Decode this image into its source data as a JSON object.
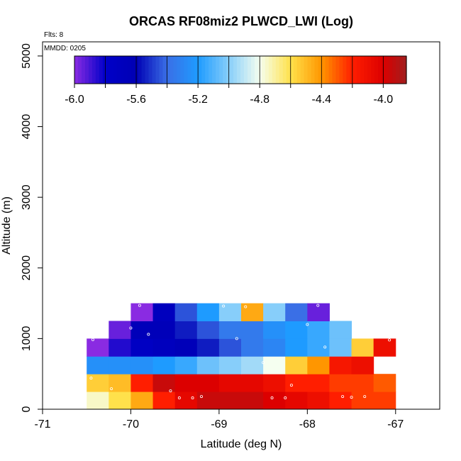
{
  "chart_data": {
    "type": "heatmap",
    "title": "ORCAS RF08miz2 PLWCD_LWI (Log)",
    "xlabel": "Latitude (deg N)",
    "ylabel": "Altitude (m)",
    "flights_note": "Flts: 8",
    "date_note": "MMDD: 0205",
    "xlim": [
      -71,
      -66.5
    ],
    "ylim": [
      0,
      5200
    ],
    "x_ticks": [
      -71,
      -70,
      -69,
      -68,
      -67
    ],
    "x_tick_labels": [
      "-71",
      "-70",
      "-69",
      "-68",
      "-67"
    ],
    "y_ticks": [
      0,
      1000,
      2000,
      3000,
      4000,
      5000
    ],
    "y_tick_labels": [
      "0",
      "1000",
      "2000",
      "3000",
      "4000",
      "5000"
    ],
    "colorbar": {
      "min": -6.0,
      "max": -3.85,
      "ticks": [
        -6.0,
        -5.6,
        -5.2,
        -4.8,
        -4.4,
        -4.0
      ],
      "tick_labels": [
        "-6.0",
        "-5.6",
        "-5.2",
        "-4.8",
        "-4.4",
        "-4.0"
      ],
      "stops": [
        {
          "value": -6.0,
          "color": "#8a2be2"
        },
        {
          "value": -5.8,
          "color": "#0000c8"
        },
        {
          "value": -5.6,
          "color": "#0000b4"
        },
        {
          "value": -5.4,
          "color": "#3a6fe6"
        },
        {
          "value": -5.2,
          "color": "#1e9bff"
        },
        {
          "value": -5.0,
          "color": "#87cefa"
        },
        {
          "value": -4.8,
          "color": "#f5fff0"
        },
        {
          "value": -4.6,
          "color": "#ffe14b"
        },
        {
          "value": -4.4,
          "color": "#ff9600"
        },
        {
          "value": -4.2,
          "color": "#ff1e00"
        },
        {
          "value": -4.0,
          "color": "#dc0000"
        },
        {
          "value": -3.85,
          "color": "#a01e1e"
        }
      ]
    },
    "lat_bins": [
      -70.5,
      -70.25,
      -70.0,
      -69.75,
      -69.5,
      -69.25,
      -69.0,
      -68.75,
      -68.5,
      -68.25,
      -68.0,
      -67.75,
      -67.5,
      -67.25,
      -67.0
    ],
    "alt_bins": [
      0,
      250,
      500,
      750,
      1000,
      1250,
      1500
    ],
    "values": [
      [
        -4.75,
        -4.6,
        -4.45,
        -4.2,
        -4.05,
        -3.95,
        -3.95,
        -3.95,
        -4.0,
        -4.05,
        -4.1,
        -4.2,
        -4.25,
        -4.25
      ],
      [
        -4.55,
        -4.5,
        -4.2,
        -3.95,
        -4.0,
        -4.0,
        -4.05,
        -4.05,
        -4.1,
        -4.2,
        -4.2,
        -4.25,
        -4.25,
        -4.3
      ],
      [
        -5.25,
        -5.25,
        -5.25,
        -5.2,
        -5.15,
        -5.05,
        -5.0,
        -4.95,
        -4.8,
        -4.55,
        -4.4,
        -4.15,
        -4.1,
        null
      ],
      [
        -6.0,
        -5.85,
        -5.75,
        -5.7,
        -5.65,
        -5.55,
        -5.45,
        -5.35,
        -5.3,
        -5.2,
        -5.15,
        -5.05,
        -4.55,
        -4.1
      ],
      [
        null,
        -5.95,
        -5.65,
        -5.65,
        -5.55,
        -5.45,
        -5.35,
        -5.35,
        -5.25,
        -5.2,
        -5.15,
        -5.05,
        null,
        null
      ],
      [
        null,
        null,
        -6.0,
        -5.7,
        -5.45,
        -5.2,
        -5.0,
        -4.45,
        -5.0,
        -5.4,
        -5.95,
        null,
        null,
        null
      ]
    ],
    "sample_points": [
      [
        -70.45,
        440
      ],
      [
        -70.43,
        985
      ],
      [
        -70.22,
        290
      ],
      [
        -70.0,
        1150
      ],
      [
        -69.9,
        1470
      ],
      [
        -69.8,
        1060
      ],
      [
        -69.55,
        260
      ],
      [
        -69.45,
        160
      ],
      [
        -69.3,
        160
      ],
      [
        -69.2,
        180
      ],
      [
        -68.95,
        1460
      ],
      [
        -68.8,
        1000
      ],
      [
        -68.7,
        1450
      ],
      [
        -68.5,
        660
      ],
      [
        -68.4,
        160
      ],
      [
        -68.25,
        160
      ],
      [
        -68.18,
        340
      ],
      [
        -68.0,
        1200
      ],
      [
        -67.88,
        1470
      ],
      [
        -67.8,
        880
      ],
      [
        -67.6,
        180
      ],
      [
        -67.5,
        170
      ],
      [
        -67.35,
        180
      ],
      [
        -67.07,
        980
      ]
    ]
  }
}
